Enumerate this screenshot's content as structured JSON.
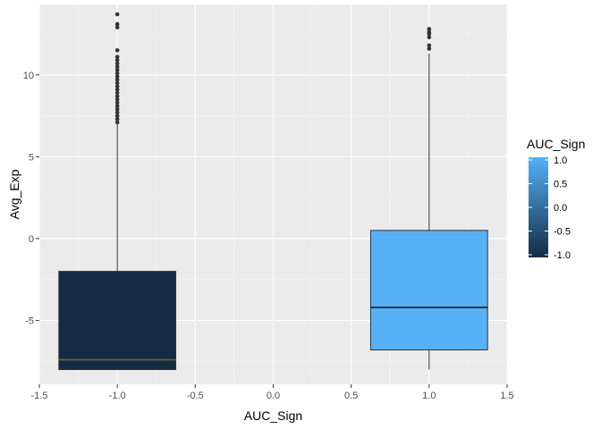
{
  "chart_data": {
    "type": "boxplot",
    "title": "",
    "xlabel": "AUC_Sign",
    "ylabel": "Avg_Exp",
    "xlim": [
      -1.5,
      1.5
    ],
    "ylim": [
      -8.9,
      14.3
    ],
    "x_ticks": [
      -1.5,
      -1.0,
      -0.5,
      0.0,
      0.5,
      1.0,
      1.5
    ],
    "x_tick_labels": [
      "-1.5",
      "-1.0",
      "-0.5",
      "0.0",
      "0.5",
      "1.0",
      "1.5"
    ],
    "y_ticks": [
      -5,
      0,
      5,
      10
    ],
    "y_tick_labels": [
      "-5",
      "0",
      "5",
      "10"
    ],
    "grid": true,
    "panel_background": "#ebebeb",
    "boxes": [
      {
        "x": -1.0,
        "width": 0.75,
        "min": -8.0,
        "q1": -8.0,
        "median": -7.4,
        "q3": -2.0,
        "max": 7.0,
        "fill": "#132b43",
        "median_color": "#6b6a3c",
        "outliers": [
          7.1,
          7.3,
          7.5,
          7.7,
          7.9,
          8.1,
          8.3,
          8.5,
          8.7,
          8.9,
          9.1,
          9.3,
          9.5,
          9.7,
          9.9,
          10.1,
          10.3,
          10.5,
          10.7,
          10.9,
          11.1,
          11.5,
          12.9,
          13.1,
          13.7
        ]
      },
      {
        "x": 1.0,
        "width": 0.75,
        "min": -8.0,
        "q1": -6.8,
        "median": -4.2,
        "q3": 0.5,
        "max": 11.3,
        "fill": "#56b1f7",
        "median_color": "#1a1a1a",
        "outliers": [
          11.6,
          11.8,
          12.3,
          12.5,
          12.6,
          12.8
        ]
      }
    ],
    "legend": {
      "title": "AUC_Sign",
      "type": "colorbar",
      "placement": "right",
      "low_color": "#132b43",
      "high_color": "#56b1f7",
      "min": -1.0,
      "max": 1.0,
      "ticks": [
        -1.0,
        -0.5,
        0.0,
        0.5,
        1.0
      ],
      "tick_labels": [
        "-1.0",
        "-0.5",
        "0.0",
        "0.5",
        "1.0"
      ]
    }
  }
}
